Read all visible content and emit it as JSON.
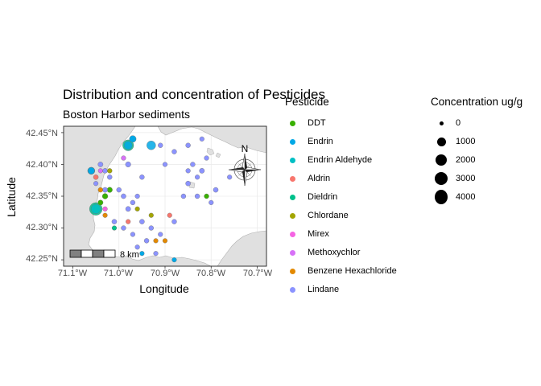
{
  "title": "Distribution and concentration of Pesticides",
  "subtitle": "Boston Harbor sediments",
  "axes": {
    "xlabel": "Longitude",
    "ylabel": "Latitude",
    "xticks": [
      "71.1°W",
      "71.0°W",
      "70.9°W",
      "70.8°W",
      "70.7°W"
    ],
    "yticks": [
      "42.45°N",
      "42.40°N",
      "42.35°N",
      "42.30°N",
      "42.25°N"
    ]
  },
  "legend": {
    "title": "Pesticide",
    "items": [
      {
        "label": "DDT",
        "color": "#38B000"
      },
      {
        "label": "Endrin",
        "color": "#00A8E6"
      },
      {
        "label": "Endrin Aldehyde",
        "color": "#00BFC4"
      },
      {
        "label": "Aldrin",
        "color": "#F8766D"
      },
      {
        "label": "Dieldrin",
        "color": "#00C08B"
      },
      {
        "label": "Chlordane",
        "color": "#A3A500"
      },
      {
        "label": "Mirex",
        "color": "#F564E3"
      },
      {
        "label": "Methoxychlor",
        "color": "#D771F7"
      },
      {
        "label": "Benzene Hexachloride",
        "color": "#E38900"
      },
      {
        "label": "Lindane",
        "color": "#8B93FF"
      }
    ]
  },
  "size_legend": {
    "title": "Concentration ug/g",
    "items": [
      {
        "label": "0",
        "value": 0
      },
      {
        "label": "1000",
        "value": 1000
      },
      {
        "label": "2000",
        "value": 2000
      },
      {
        "label": "3000",
        "value": 3000
      },
      {
        "label": "4000",
        "value": 4000
      }
    ]
  },
  "scale_bar": {
    "label": "8 km"
  },
  "north_arrow": {
    "label": "N"
  },
  "colors": {
    "land": "#e0e0e0",
    "water": "#ffffff",
    "grid": "#ebebeb",
    "panel_border": "#333333"
  },
  "chart_data": {
    "type": "scatter",
    "xlabel": "Longitude",
    "ylabel": "Latitude",
    "xlim": [
      -71.12,
      -70.68
    ],
    "ylim": [
      42.24,
      42.46
    ],
    "grid": true,
    "legend_position": "right",
    "series": [
      {
        "name": "Lindane",
        "points": [
          [
            -71.04,
            42.4,
            50
          ],
          [
            -71.03,
            42.39,
            40
          ],
          [
            -71.02,
            42.38,
            30
          ],
          [
            -71.05,
            42.37,
            20
          ],
          [
            -71.03,
            42.36,
            50
          ],
          [
            -71.0,
            42.36,
            30
          ],
          [
            -70.99,
            42.35,
            40
          ],
          [
            -70.97,
            42.34,
            30
          ],
          [
            -70.96,
            42.35,
            20
          ],
          [
            -70.98,
            42.33,
            50
          ],
          [
            -71.01,
            42.31,
            40
          ],
          [
            -70.99,
            42.3,
            30
          ],
          [
            -70.97,
            42.29,
            20
          ],
          [
            -70.95,
            42.31,
            40
          ],
          [
            -70.93,
            42.3,
            30
          ],
          [
            -70.91,
            42.29,
            20
          ],
          [
            -70.88,
            42.31,
            30
          ],
          [
            -70.85,
            42.37,
            40
          ],
          [
            -70.83,
            42.38,
            20
          ],
          [
            -70.82,
            42.39,
            50
          ],
          [
            -70.84,
            42.4,
            30
          ],
          [
            -70.81,
            42.41,
            20
          ],
          [
            -70.85,
            42.43,
            30
          ],
          [
            -70.83,
            42.35,
            30
          ],
          [
            -70.8,
            42.34,
            20
          ],
          [
            -70.79,
            42.36,
            40
          ],
          [
            -70.76,
            42.38,
            20
          ],
          [
            -70.9,
            42.4,
            20
          ],
          [
            -70.88,
            42.42,
            30
          ],
          [
            -70.85,
            42.39,
            20
          ],
          [
            -70.86,
            42.35,
            30
          ],
          [
            -70.82,
            42.44,
            20
          ],
          [
            -70.96,
            42.27,
            20
          ],
          [
            -70.94,
            42.28,
            30
          ],
          [
            -70.92,
            42.26,
            20
          ],
          [
            -70.95,
            42.38,
            30
          ],
          [
            -70.98,
            42.4,
            80
          ],
          [
            -70.91,
            42.43,
            30
          ]
        ]
      },
      {
        "name": "Endrin",
        "points": [
          [
            -71.06,
            42.39,
            300
          ],
          [
            -70.98,
            42.43,
            700
          ],
          [
            -70.93,
            42.43,
            900
          ],
          [
            -70.97,
            42.44,
            300
          ],
          [
            -70.95,
            42.26,
            20
          ],
          [
            -70.88,
            42.25,
            20
          ]
        ]
      },
      {
        "name": "Dieldrin",
        "points": [
          [
            -71.05,
            42.33,
            2800
          ],
          [
            -70.98,
            42.43,
            1800
          ],
          [
            -71.01,
            42.3,
            20
          ]
        ]
      },
      {
        "name": "DDT",
        "points": [
          [
            -71.03,
            42.35,
            100
          ],
          [
            -71.02,
            42.36,
            80
          ],
          [
            -71.04,
            42.34,
            60
          ],
          [
            -70.81,
            42.35,
            30
          ]
        ]
      },
      {
        "name": "Benzene Hexachloride",
        "points": [
          [
            -71.04,
            42.36,
            30
          ],
          [
            -71.03,
            42.32,
            20
          ],
          [
            -70.92,
            42.28,
            20
          ],
          [
            -70.9,
            42.28,
            20
          ]
        ]
      },
      {
        "name": "Aldrin",
        "points": [
          [
            -71.05,
            42.38,
            40
          ],
          [
            -70.98,
            42.31,
            20
          ],
          [
            -70.89,
            42.32,
            20
          ]
        ]
      },
      {
        "name": "Chlordane",
        "points": [
          [
            -71.02,
            42.39,
            30
          ],
          [
            -70.96,
            42.33,
            20
          ],
          [
            -70.93,
            42.32,
            20
          ]
        ]
      },
      {
        "name": "Methoxychlor",
        "points": [
          [
            -71.04,
            42.39,
            20
          ],
          [
            -70.99,
            42.41,
            20
          ]
        ]
      },
      {
        "name": "Mirex",
        "points": [
          [
            -71.03,
            42.33,
            20
          ]
        ]
      },
      {
        "name": "Endrin Aldehyde",
        "points": [
          [
            -71.06,
            42.39,
            400
          ],
          [
            -71.05,
            42.33,
            1200
          ]
        ]
      }
    ]
  }
}
